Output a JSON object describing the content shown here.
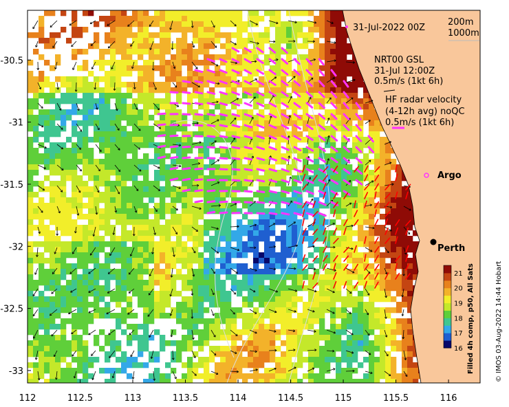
{
  "map": {
    "title_date": "31-Jul-2022 00Z",
    "isobath_labels": [
      "200m",
      "1000m"
    ],
    "gsl_label": "NRT00 GSL",
    "gsl_time": "31-Jul 12:00Z",
    "gsl_scale": "0.5m/s (1kt 6h)",
    "hf_title": "HF radar velocity",
    "hf_sub": "(4-12h avg) noQC",
    "hf_scale": "0.5m/s (1kt 6h)",
    "argo_label": "Argo",
    "city_label": "Perth",
    "colorbar_title": "Filled 4h comp, p50, All Sats",
    "credit": "© IMOS 03-Aug-2022 14:44 Hobart",
    "colors": {
      "land": "#f9c79b",
      "gsl_vectors": "#ff33ff",
      "hf_vectors": "#ff0000",
      "velocity_arrows": "#000000"
    }
  },
  "chart_data": {
    "type": "heatmap",
    "variable": "sea surface temperature",
    "x_ticks": [
      "112",
      "112.5",
      "113",
      "113.5",
      "114",
      "114.5",
      "115",
      "115.5",
      "116"
    ],
    "y_ticks": [
      "-30.5",
      "-31",
      "-31.5",
      "-32",
      "-32.5",
      "-33"
    ],
    "xlim": [
      112,
      116.3
    ],
    "ylim": [
      -33.1,
      -30.1
    ],
    "colorbar": {
      "ticks": [
        "21",
        "20",
        "19",
        "18",
        "17",
        "16"
      ],
      "range": [
        16,
        21.5
      ],
      "colors": [
        "#08086b",
        "#1f5fd0",
        "#33a8e8",
        "#3fc690",
        "#5fcf3a",
        "#c4e82a",
        "#f2ee2a",
        "#f3b22a",
        "#e8811c",
        "#c44512",
        "#8f0b06"
      ]
    },
    "points": [
      {
        "label": "Argo",
        "lon": 115.8,
        "lat": -31.45
      },
      {
        "label": "Perth",
        "lon": 115.86,
        "lat": -31.95
      }
    ]
  }
}
